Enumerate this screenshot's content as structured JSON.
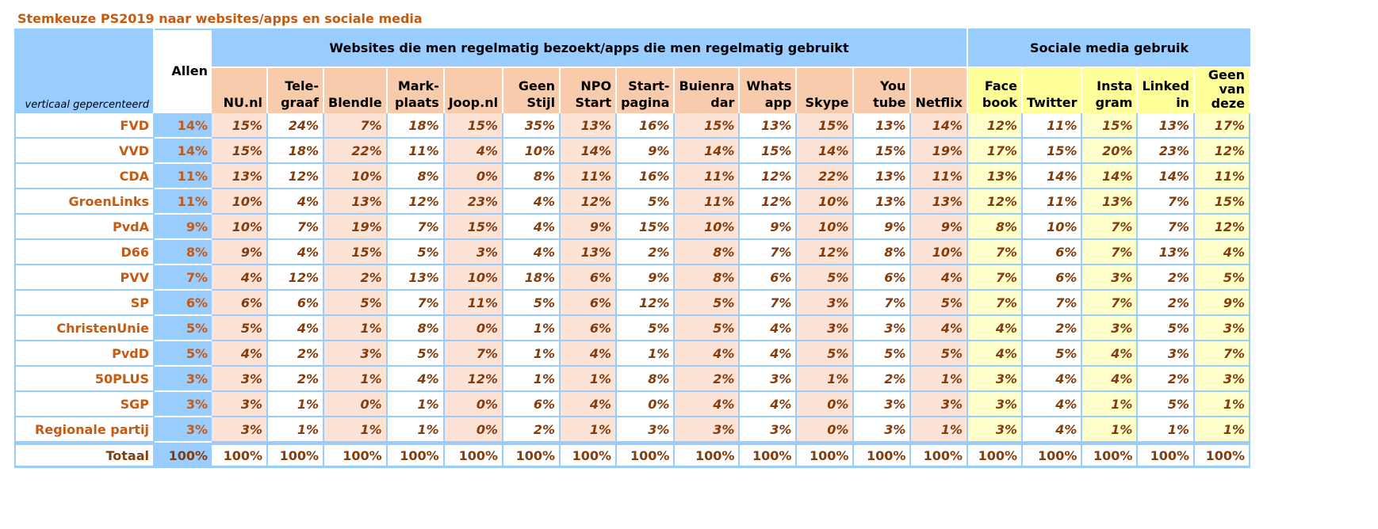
{
  "title": "Stemkeuze PS2019 naar websites/apps en sociale media",
  "corner_note": "verticaal gepercenteerd",
  "allen_label": "Allen",
  "group_web": "Websites die men regelmatig bezoekt/apps die men regelmatig gebruikt",
  "group_social": "Sociale media gebruik",
  "colors": {
    "header_blue": "#99ccff",
    "web_header": "#f8cbad",
    "web_cell": "#fde3d6",
    "social_header": "#ffff99",
    "social_cell": "#ffffcc",
    "party_text": "#c55a11",
    "value_text": "#833c0b"
  },
  "chart_data": {
    "type": "table",
    "columns_web": [
      "NU.nl",
      "Tele-\ngraaf",
      "Blendle",
      "Mark-\nplaats",
      "Joop.nl",
      "Geen\nStijl",
      "NPO\nStart",
      "Start-\npagina",
      "Buienra\ndar",
      "Whats\napp",
      "Skype",
      "You\ntube",
      "Netflix"
    ],
    "columns_social": [
      "Face\nbook",
      "Twitter",
      "Insta\ngram",
      "Linked\nin",
      "Geen\nvan\ndeze"
    ],
    "rows": [
      {
        "party": "FVD",
        "allen": "14%",
        "web": [
          "15%",
          "24%",
          "7%",
          "18%",
          "15%",
          "35%",
          "13%",
          "16%",
          "15%",
          "13%",
          "15%",
          "13%",
          "14%"
        ],
        "social": [
          "12%",
          "11%",
          "15%",
          "13%",
          "17%"
        ]
      },
      {
        "party": "VVD",
        "allen": "14%",
        "web": [
          "15%",
          "18%",
          "22%",
          "11%",
          "4%",
          "10%",
          "14%",
          "9%",
          "14%",
          "15%",
          "14%",
          "15%",
          "19%"
        ],
        "social": [
          "17%",
          "15%",
          "20%",
          "23%",
          "12%"
        ]
      },
      {
        "party": "CDA",
        "allen": "11%",
        "web": [
          "13%",
          "12%",
          "10%",
          "8%",
          "0%",
          "8%",
          "11%",
          "16%",
          "11%",
          "12%",
          "22%",
          "13%",
          "11%"
        ],
        "social": [
          "13%",
          "14%",
          "14%",
          "14%",
          "11%"
        ]
      },
      {
        "party": "GroenLinks",
        "allen": "11%",
        "web": [
          "10%",
          "4%",
          "13%",
          "12%",
          "23%",
          "4%",
          "12%",
          "5%",
          "11%",
          "12%",
          "10%",
          "13%",
          "13%"
        ],
        "social": [
          "12%",
          "11%",
          "13%",
          "7%",
          "15%"
        ]
      },
      {
        "party": "PvdA",
        "allen": "9%",
        "web": [
          "10%",
          "7%",
          "19%",
          "7%",
          "15%",
          "4%",
          "9%",
          "15%",
          "10%",
          "9%",
          "10%",
          "9%",
          "9%"
        ],
        "social": [
          "8%",
          "10%",
          "7%",
          "7%",
          "12%"
        ]
      },
      {
        "party": "D66",
        "allen": "8%",
        "web": [
          "9%",
          "4%",
          "15%",
          "5%",
          "3%",
          "4%",
          "13%",
          "2%",
          "8%",
          "7%",
          "12%",
          "8%",
          "10%"
        ],
        "social": [
          "7%",
          "6%",
          "7%",
          "13%",
          "4%"
        ]
      },
      {
        "party": "PVV",
        "allen": "7%",
        "web": [
          "4%",
          "12%",
          "2%",
          "13%",
          "10%",
          "18%",
          "6%",
          "9%",
          "8%",
          "6%",
          "5%",
          "6%",
          "4%"
        ],
        "social": [
          "7%",
          "6%",
          "3%",
          "2%",
          "5%"
        ]
      },
      {
        "party": "SP",
        "allen": "6%",
        "web": [
          "6%",
          "6%",
          "5%",
          "7%",
          "11%",
          "5%",
          "6%",
          "12%",
          "5%",
          "7%",
          "3%",
          "7%",
          "5%"
        ],
        "social": [
          "7%",
          "7%",
          "7%",
          "2%",
          "9%"
        ]
      },
      {
        "party": "ChristenUnie",
        "allen": "5%",
        "web": [
          "5%",
          "4%",
          "1%",
          "8%",
          "0%",
          "1%",
          "6%",
          "5%",
          "5%",
          "4%",
          "3%",
          "3%",
          "4%"
        ],
        "social": [
          "4%",
          "2%",
          "3%",
          "5%",
          "3%"
        ]
      },
      {
        "party": "PvdD",
        "allen": "5%",
        "web": [
          "4%",
          "2%",
          "3%",
          "5%",
          "7%",
          "1%",
          "4%",
          "1%",
          "4%",
          "4%",
          "5%",
          "5%",
          "5%"
        ],
        "social": [
          "4%",
          "5%",
          "4%",
          "3%",
          "7%"
        ]
      },
      {
        "party": "50PLUS",
        "allen": "3%",
        "web": [
          "3%",
          "2%",
          "1%",
          "4%",
          "12%",
          "1%",
          "1%",
          "8%",
          "2%",
          "3%",
          "1%",
          "2%",
          "1%"
        ],
        "social": [
          "3%",
          "4%",
          "4%",
          "2%",
          "3%"
        ]
      },
      {
        "party": "SGP",
        "allen": "3%",
        "web": [
          "3%",
          "1%",
          "0%",
          "1%",
          "0%",
          "6%",
          "4%",
          "0%",
          "4%",
          "4%",
          "0%",
          "3%",
          "3%"
        ],
        "social": [
          "3%",
          "4%",
          "1%",
          "5%",
          "1%"
        ]
      },
      {
        "party": "Regionale partij",
        "allen": "3%",
        "web": [
          "3%",
          "1%",
          "1%",
          "1%",
          "0%",
          "2%",
          "1%",
          "3%",
          "3%",
          "3%",
          "0%",
          "3%",
          "1%"
        ],
        "social": [
          "3%",
          "4%",
          "1%",
          "1%",
          "1%"
        ]
      }
    ],
    "total": {
      "party": "Totaal",
      "allen": "100%",
      "web": [
        "100%",
        "100%",
        "100%",
        "100%",
        "100%",
        "100%",
        "100%",
        "100%",
        "100%",
        "100%",
        "100%",
        "100%",
        "100%"
      ],
      "social": [
        "100%",
        "100%",
        "100%",
        "100%",
        "100%"
      ]
    }
  }
}
